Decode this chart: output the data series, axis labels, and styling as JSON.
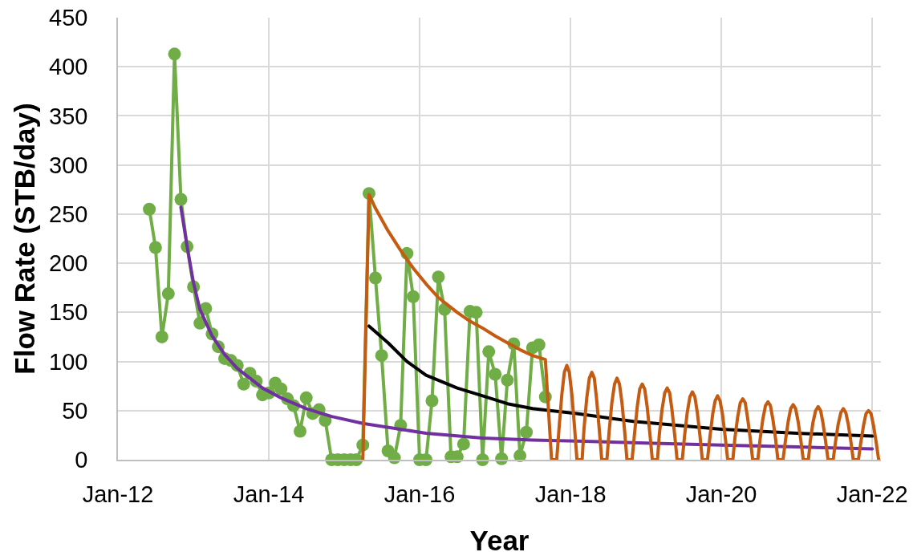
{
  "chart_data": {
    "type": "line",
    "xlabel": "Year",
    "ylabel": "Flow Rate (STB/day)",
    "xlim": [
      "2012-01-01",
      "2022-02-12"
    ],
    "xticks": [
      {
        "value": "2012-01-01",
        "label": "Jan-12"
      },
      {
        "value": "2014-01-01",
        "label": "Jan-14"
      },
      {
        "value": "2016-01-01",
        "label": "Jan-16"
      },
      {
        "value": "2018-01-01",
        "label": "Jan-18"
      },
      {
        "value": "2020-01-01",
        "label": "Jan-20"
      },
      {
        "value": "2022-01-01",
        "label": "Jan-22"
      }
    ],
    "ylim": [
      0,
      450
    ],
    "yticks": [
      0,
      50,
      100,
      150,
      200,
      250,
      300,
      350,
      400,
      450
    ],
    "grid": true,
    "series": [
      {
        "color": "#70ad47",
        "marker": "circle",
        "x": [
          "2012-06",
          "2012-07",
          "2012-08",
          "2012-09",
          "2012-10",
          "2012-11",
          "2012-12",
          "2013-01",
          "2013-02",
          "2013-03",
          "2013-04",
          "2013-05",
          "2013-06",
          "2013-07",
          "2013-08",
          "2013-09",
          "2013-10",
          "2013-11",
          "2013-12",
          "2014-01",
          "2014-02",
          "2014-03",
          "2014-04",
          "2014-05",
          "2014-06",
          "2014-07",
          "2014-08",
          "2014-09",
          "2014-10",
          "2014-11",
          "2014-12",
          "2015-01",
          "2015-02",
          "2015-03",
          "2015-04",
          "2015-05",
          "2015-06",
          "2015-07",
          "2015-08",
          "2015-09",
          "2015-10",
          "2015-11",
          "2015-12",
          "2016-01",
          "2016-02",
          "2016-03",
          "2016-04",
          "2016-05",
          "2016-06",
          "2016-07",
          "2016-08",
          "2016-09",
          "2016-10",
          "2016-11",
          "2016-12",
          "2017-01",
          "2017-02",
          "2017-03",
          "2017-04",
          "2017-05",
          "2017-06",
          "2017-07",
          "2017-08",
          "2017-09"
        ],
        "values": [
          255,
          216,
          125,
          169,
          413,
          265,
          217,
          176,
          139,
          154,
          128,
          115,
          103,
          101,
          96,
          77,
          88,
          80,
          66,
          68,
          78,
          72,
          62,
          55,
          29,
          63,
          47,
          51,
          40,
          0,
          0,
          0,
          0,
          0,
          15,
          271,
          185,
          106,
          9,
          2,
          35,
          210,
          166,
          0,
          0,
          60,
          186,
          153,
          3,
          3,
          16,
          151,
          150,
          0,
          110,
          87,
          1,
          81,
          118,
          4,
          28,
          114,
          117,
          64
        ]
      },
      {
        "color": "#7030a0",
        "marker": "none",
        "x": [
          "2012-11",
          "2012-12",
          "2013-01",
          "2013-02",
          "2013-04",
          "2013-06",
          "2013-08",
          "2013-12",
          "2014-03",
          "2014-07",
          "2014-11",
          "2015-04",
          "2016-02",
          "2016-11",
          "2017-07",
          "2018-02",
          "2019-01",
          "2020-01",
          "2021-01",
          "2022-01"
        ],
        "values": [
          257,
          217,
          180,
          153,
          126,
          107,
          93,
          73,
          63,
          52,
          44,
          37,
          27,
          22,
          20,
          19,
          17,
          15,
          13,
          11
        ]
      },
      {
        "color": "#000000",
        "marker": "none",
        "x": [
          "2015-05",
          "2015-08",
          "2015-11",
          "2016-02",
          "2016-07",
          "2016-11",
          "2017-03",
          "2017-07",
          "2018-02",
          "2018-11",
          "2020-01",
          "2021-01",
          "2022-01"
        ],
        "values": [
          136,
          119,
          100,
          86,
          73,
          65,
          57,
          52,
          47,
          39,
          31,
          27,
          24
        ]
      },
      {
        "color": "#c55a11",
        "marker": "none",
        "x": [
          "2015-04",
          "2015-05",
          "2015-06",
          "2015-08",
          "2015-10",
          "2015-12",
          "2016-02",
          "2016-04",
          "2016-07",
          "2016-09",
          "2016-11",
          "2017-01",
          "2017-03",
          "2017-05",
          "2017-07",
          "2017-09",
          "2017-10",
          "2017-10-26",
          "2017-11-07",
          "2017-11-20",
          "2017-12-02",
          "2017-12-14",
          "2017-12-26",
          "2018-01-07",
          "2018-01-20",
          "2018-02-01",
          "2018-02-26",
          "2018-03-07",
          "2018-03-20",
          "2018-04-02",
          "2018-04-14",
          "2018-04-26",
          "2018-05-07",
          "2018-05-20",
          "2018-06-01",
          "2018-06-26",
          "2018-07-07",
          "2018-07-20",
          "2018-08-02",
          "2018-08-14",
          "2018-08-26",
          "2018-09-07",
          "2018-09-20",
          "2018-10-01",
          "2018-10-26",
          "2018-11-07",
          "2018-11-20",
          "2018-12-02",
          "2018-12-14",
          "2018-12-26",
          "2019-01-07",
          "2019-01-20",
          "2019-02-01",
          "2019-02-26",
          "2019-03-07",
          "2019-03-20",
          "2019-04-02",
          "2019-04-14",
          "2019-04-26",
          "2019-05-07",
          "2019-05-20",
          "2019-06-01",
          "2019-06-26",
          "2019-07-07",
          "2019-07-20",
          "2019-08-02",
          "2019-08-14",
          "2019-08-26",
          "2019-09-07",
          "2019-09-20",
          "2019-10-01",
          "2019-10-26",
          "2019-11-07",
          "2019-11-20",
          "2019-12-02",
          "2019-12-14",
          "2019-12-26",
          "2020-01-07",
          "2020-01-20",
          "2020-02-01",
          "2020-02-26",
          "2020-03-07",
          "2020-03-20",
          "2020-04-02",
          "2020-04-14",
          "2020-04-26",
          "2020-05-07",
          "2020-05-20",
          "2020-06-01",
          "2020-06-26",
          "2020-07-07",
          "2020-07-20",
          "2020-08-02",
          "2020-08-14",
          "2020-08-26",
          "2020-09-07",
          "2020-09-20",
          "2020-10-01",
          "2020-10-26",
          "2020-11-07",
          "2020-11-20",
          "2020-12-02",
          "2020-12-14",
          "2020-12-26",
          "2021-01-07",
          "2021-01-20",
          "2021-02-01",
          "2021-02-26",
          "2021-03-07",
          "2021-03-20",
          "2021-04-02",
          "2021-04-14",
          "2021-04-26",
          "2021-05-07",
          "2021-05-20",
          "2021-06-01",
          "2021-06-26",
          "2021-07-07",
          "2021-07-20",
          "2021-08-02",
          "2021-08-14",
          "2021-08-26",
          "2021-09-07",
          "2021-09-20",
          "2021-10-01",
          "2021-10-26",
          "2021-11-07",
          "2021-11-20",
          "2021-12-02",
          "2021-12-14",
          "2021-12-26",
          "2022-01-07",
          "2022-01-20",
          "2022-02-01"
        ],
        "values": [
          0,
          270,
          256,
          233,
          213,
          195,
          179,
          165,
          150,
          141,
          134,
          126,
          119,
          112,
          106,
          102,
          0,
          0,
          34,
          67,
          89,
          96,
          89,
          67,
          34,
          0,
          0,
          31,
          62,
          83,
          89,
          83,
          62,
          31,
          0,
          0,
          29,
          58,
          77,
          83,
          77,
          58,
          29,
          0,
          0,
          27,
          54,
          72,
          77,
          72,
          54,
          27,
          0,
          0,
          26,
          51,
          68,
          73,
          68,
          51,
          26,
          0,
          0,
          24,
          48,
          64,
          69,
          64,
          48,
          24,
          0,
          0,
          23,
          46,
          60,
          65,
          60,
          46,
          23,
          0,
          0,
          22,
          43,
          58,
          62,
          58,
          43,
          22,
          0,
          0,
          21,
          41,
          55,
          59,
          55,
          41,
          21,
          0,
          0,
          20,
          39,
          52,
          56,
          52,
          39,
          20,
          0,
          0,
          19,
          38,
          50,
          54,
          50,
          38,
          19,
          0,
          0,
          18,
          36,
          48,
          52,
          48,
          36,
          18,
          0,
          0,
          18,
          35,
          47,
          50,
          47,
          35,
          18,
          0
        ]
      }
    ]
  }
}
